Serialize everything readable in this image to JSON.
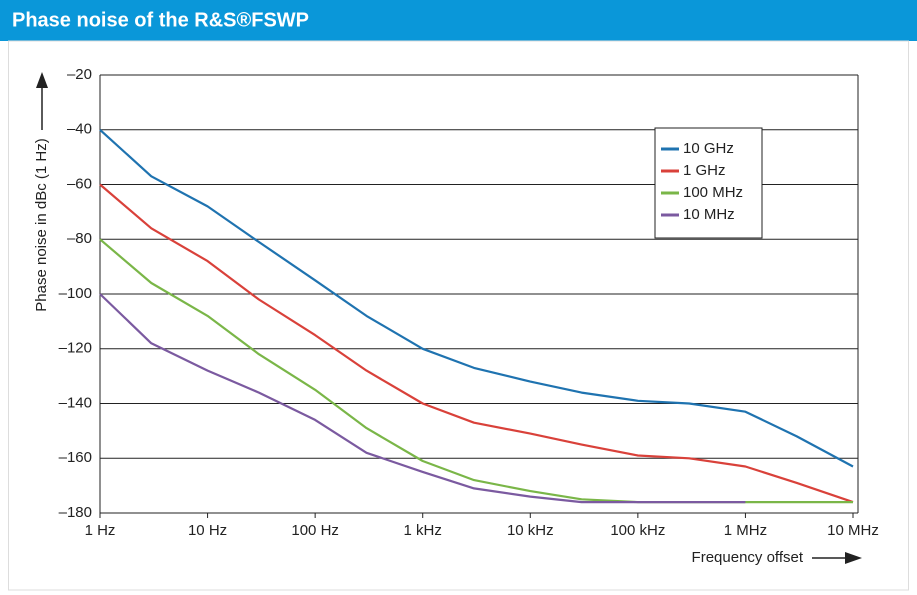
{
  "chart_data": {
    "type": "line",
    "title": "Phase noise of the R&S®FSWP",
    "y_label": "Phase noise in dBc (1 Hz)",
    "x_label": "Frequency offset",
    "x_log": true,
    "x": [
      1,
      3,
      10,
      30,
      100,
      300,
      1000,
      3000,
      10000,
      30000,
      100000,
      300000,
      1000000,
      3000000,
      10000000
    ],
    "xlim": [
      1,
      10000000
    ],
    "xticks": [
      {
        "value": 1,
        "label": "1 Hz"
      },
      {
        "value": 10,
        "label": "10 Hz"
      },
      {
        "value": 100,
        "label": "100 Hz"
      },
      {
        "value": 1000,
        "label": "1 kHz"
      },
      {
        "value": 10000,
        "label": "10 kHz"
      },
      {
        "value": 100000,
        "label": "100 kHz"
      },
      {
        "value": 1000000,
        "label": "1 MHz"
      },
      {
        "value": 10000000,
        "label": "10 MHz"
      }
    ],
    "ylim": [
      -180,
      -20
    ],
    "yticks": [
      {
        "value": -180,
        "label": "–180"
      },
      {
        "value": -160,
        "label": "–160"
      },
      {
        "value": -140,
        "label": "–140"
      },
      {
        "value": -120,
        "label": "–120"
      },
      {
        "value": -100,
        "label": "–100"
      },
      {
        "value": -80,
        "label": "–80"
      },
      {
        "value": -60,
        "label": "–60"
      },
      {
        "value": -40,
        "label": "–40"
      },
      {
        "value": -20,
        "label": "–20"
      }
    ],
    "grid": true,
    "legend": "upper right",
    "series": [
      {
        "name": "10 GHz",
        "color": "#1f73b0",
        "values": [
          -40,
          -57,
          -68,
          -81,
          -95,
          -108,
          -120,
          -127,
          -132,
          -136,
          -139,
          -140,
          -143,
          -152,
          -163
        ]
      },
      {
        "name": "1 GHz",
        "color": "#d9413a",
        "values": [
          -60,
          -76,
          -88,
          -102,
          -115,
          -128,
          -140,
          -147,
          -151,
          -155,
          -159,
          -160,
          -163,
          -169,
          -176
        ]
      },
      {
        "name": "100 MHz",
        "color": "#7ab648",
        "values": [
          -80,
          -96,
          -108,
          -122,
          -135,
          -149,
          -161,
          -168,
          -172,
          -175,
          -176,
          -176,
          -176,
          -176,
          -176
        ]
      },
      {
        "name": "10 MHz",
        "color": "#7b5aa0",
        "values": [
          -100,
          -118,
          -128,
          -136,
          -146,
          -158,
          -165,
          -171,
          -174,
          -176,
          -176,
          -176,
          -176,
          null,
          null
        ]
      }
    ]
  }
}
